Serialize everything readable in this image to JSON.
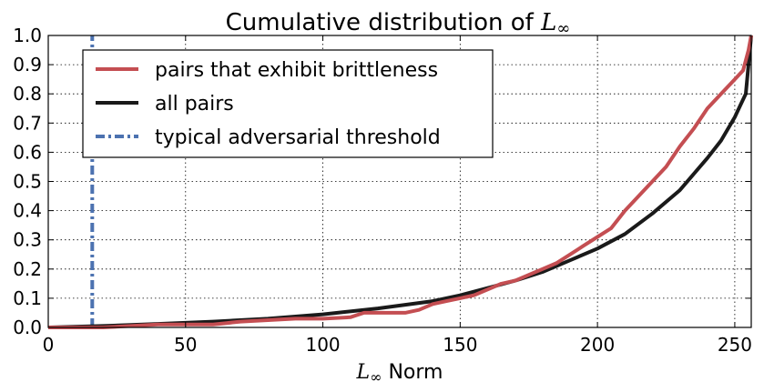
{
  "chart_data": {
    "type": "line",
    "title_prefix": "Cumulative distribution of ",
    "title_math": "L",
    "title_math_sub": "∞",
    "xlabel_math": "L",
    "xlabel_math_sub": "∞",
    "xlabel_suffix": " Norm",
    "xlim": [
      0,
      256
    ],
    "ylim": [
      0.0,
      1.0
    ],
    "xticks": [
      0,
      50,
      100,
      150,
      200,
      250
    ],
    "yticks": [
      0.0,
      0.1,
      0.2,
      0.3,
      0.4,
      0.5,
      0.6,
      0.7,
      0.8,
      0.9,
      1.0
    ],
    "xtick_labels": [
      "0",
      "50",
      "100",
      "150",
      "200",
      "250"
    ],
    "ytick_labels": [
      "0.0",
      "0.1",
      "0.2",
      "0.3",
      "0.4",
      "0.5",
      "0.6",
      "0.7",
      "0.8",
      "0.9",
      "1.0"
    ],
    "grid": true,
    "legend_position": "top-left",
    "series": [
      {
        "name": "pairs that exhibit brittleness",
        "color": "#c44e52",
        "style": "solid",
        "x": [
          0,
          20,
          40,
          60,
          65,
          70,
          80,
          90,
          100,
          110,
          115,
          120,
          125,
          130,
          135,
          140,
          145,
          150,
          155,
          160,
          165,
          170,
          175,
          180,
          185,
          190,
          195,
          200,
          205,
          210,
          215,
          220,
          225,
          230,
          235,
          240,
          245,
          250,
          253,
          255,
          256
        ],
        "y": [
          0.0,
          0.0,
          0.01,
          0.01,
          0.015,
          0.02,
          0.025,
          0.03,
          0.03,
          0.035,
          0.05,
          0.05,
          0.05,
          0.05,
          0.06,
          0.08,
          0.09,
          0.1,
          0.11,
          0.13,
          0.15,
          0.16,
          0.18,
          0.2,
          0.22,
          0.25,
          0.28,
          0.31,
          0.34,
          0.4,
          0.45,
          0.5,
          0.55,
          0.62,
          0.68,
          0.75,
          0.8,
          0.85,
          0.88,
          0.95,
          1.0
        ]
      },
      {
        "name": "all pairs",
        "color": "#1a1a1a",
        "style": "solid",
        "x": [
          0,
          20,
          40,
          60,
          80,
          100,
          120,
          140,
          150,
          160,
          170,
          180,
          190,
          200,
          210,
          220,
          230,
          240,
          245,
          250,
          252,
          254,
          255,
          256
        ],
        "y": [
          0.0,
          0.005,
          0.012,
          0.02,
          0.03,
          0.045,
          0.065,
          0.09,
          0.11,
          0.135,
          0.16,
          0.19,
          0.23,
          0.27,
          0.32,
          0.39,
          0.47,
          0.58,
          0.64,
          0.72,
          0.76,
          0.8,
          0.9,
          1.0
        ]
      },
      {
        "name": "typical adversarial threshold",
        "color": "#4c72b0",
        "style": "dashdot",
        "x": [
          16,
          16
        ],
        "y": [
          0.0,
          1.0
        ]
      }
    ]
  }
}
